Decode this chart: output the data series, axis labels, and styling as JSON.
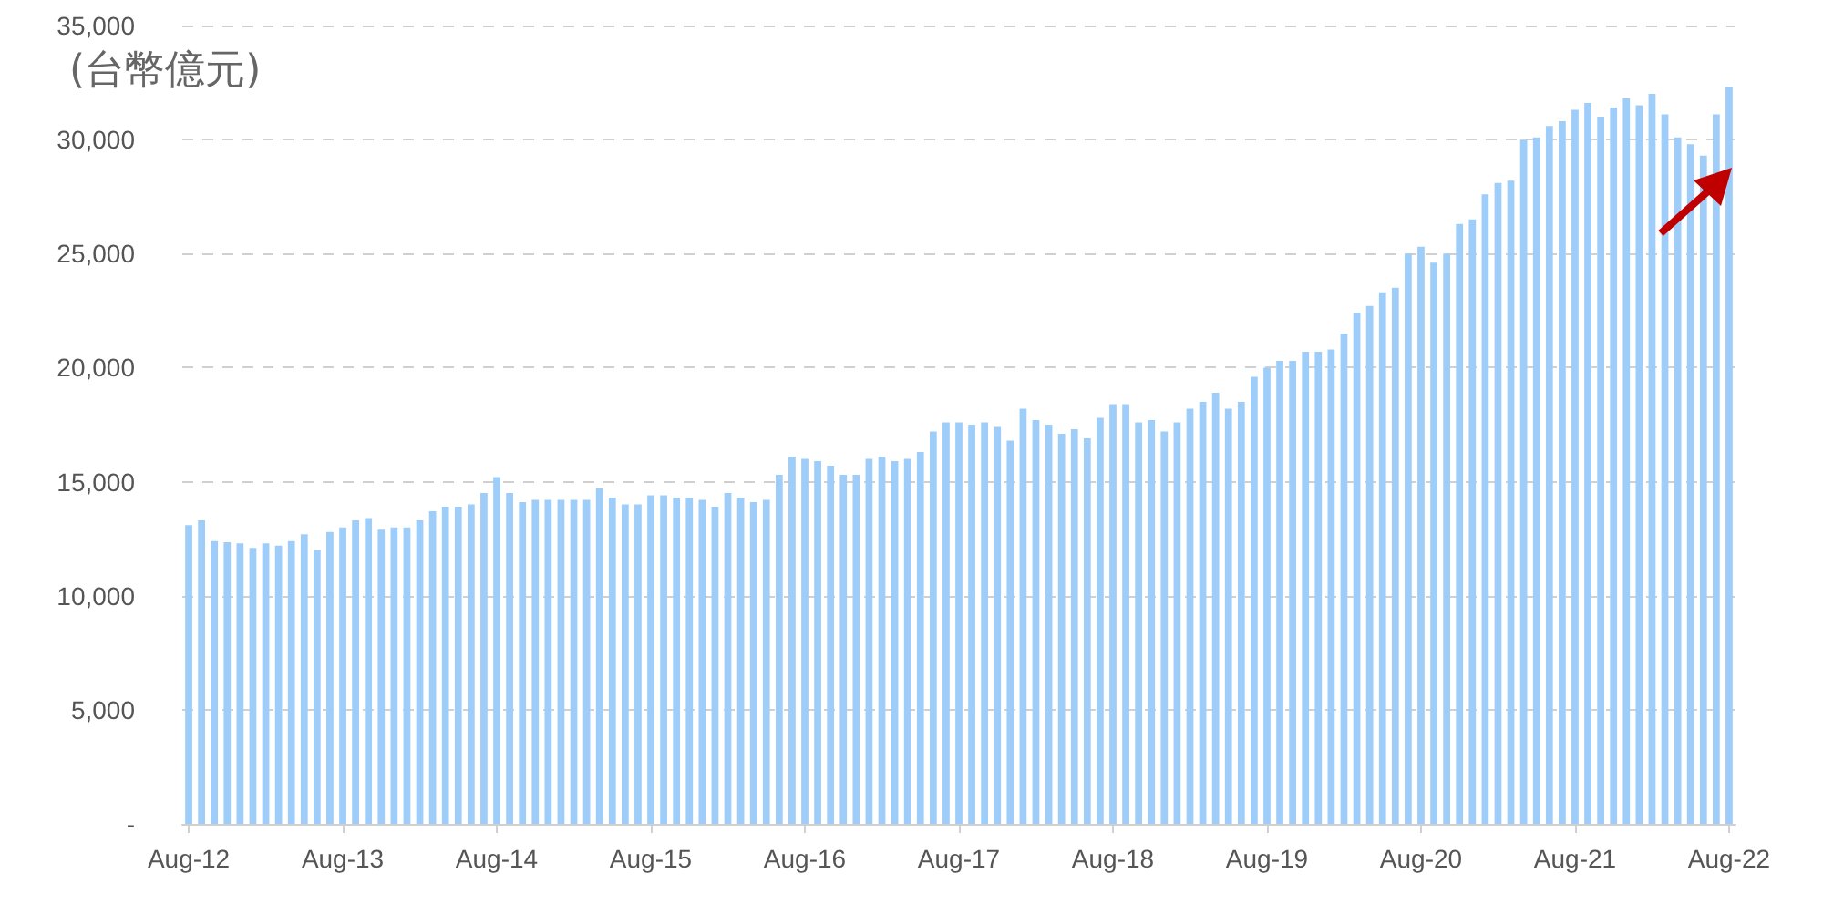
{
  "chart_data": {
    "type": "bar",
    "ylabel": "(台幣億元)",
    "categories": [
      "Aug-12",
      null,
      null,
      null,
      null,
      null,
      null,
      null,
      null,
      null,
      null,
      null,
      "Aug-13",
      null,
      null,
      null,
      null,
      null,
      null,
      null,
      null,
      null,
      null,
      null,
      "Aug-14",
      null,
      null,
      null,
      null,
      null,
      null,
      null,
      null,
      null,
      null,
      null,
      "Aug-15",
      null,
      null,
      null,
      null,
      null,
      null,
      null,
      null,
      null,
      null,
      null,
      "Aug-16",
      null,
      null,
      null,
      null,
      null,
      null,
      null,
      null,
      null,
      null,
      null,
      "Aug-17",
      null,
      null,
      null,
      null,
      null,
      null,
      null,
      null,
      null,
      null,
      null,
      "Aug-18",
      null,
      null,
      null,
      null,
      null,
      null,
      null,
      null,
      null,
      null,
      null,
      "Aug-19",
      null,
      null,
      null,
      null,
      null,
      null,
      null,
      null,
      null,
      null,
      null,
      "Aug-20",
      null,
      null,
      null,
      null,
      null,
      null,
      null,
      null,
      null,
      null,
      null,
      "Aug-21",
      null,
      null,
      null,
      null,
      null,
      null,
      null,
      null,
      null,
      null,
      null,
      "Aug-22"
    ],
    "values": [
      13100,
      13300,
      12400,
      12350,
      12300,
      12100,
      12300,
      12200,
      12400,
      12700,
      12000,
      12800,
      13000,
      13300,
      13400,
      12900,
      13000,
      13000,
      13300,
      13700,
      13900,
      13900,
      14000,
      14500,
      15200,
      14500,
      14100,
      14200,
      14200,
      14200,
      14200,
      14200,
      14700,
      14300,
      14000,
      14000,
      14400,
      14400,
      14300,
      14300,
      14200,
      13900,
      14500,
      14300,
      14100,
      14200,
      15300,
      16100,
      16000,
      15900,
      15700,
      15300,
      15300,
      16000,
      16100,
      15900,
      16000,
      16300,
      17200,
      17600,
      17600,
      17500,
      17600,
      17400,
      16800,
      18200,
      17700,
      17500,
      17100,
      17300,
      16900,
      17800,
      18400,
      18400,
      17600,
      17700,
      17200,
      17600,
      18200,
      18500,
      18900,
      18200,
      18500,
      19600,
      20000,
      20300,
      20300,
      20700,
      20700,
      20800,
      21500,
      22400,
      22700,
      23300,
      23500,
      25000,
      25300,
      24600,
      25000,
      26300,
      26500,
      27600,
      28100,
      28200,
      30000,
      30100,
      30600,
      30800,
      31300,
      31600,
      31000,
      31400,
      31800,
      31500,
      32000,
      31100,
      30100,
      29800,
      29300,
      31100,
      32300
    ],
    "color": "#9fcdf9",
    "ylim": [
      0,
      35000
    ],
    "yticks": [
      {
        "value": 0,
        "label": "-"
      },
      {
        "value": 5000,
        "label": "5,000"
      },
      {
        "value": 10000,
        "label": "10,000"
      },
      {
        "value": 15000,
        "label": "15,000"
      },
      {
        "value": 20000,
        "label": "20,000"
      },
      {
        "value": 25000,
        "label": "25,000"
      },
      {
        "value": 30000,
        "label": "30,000"
      },
      {
        "value": 35000,
        "label": "35,000"
      }
    ],
    "grid": "y"
  }
}
